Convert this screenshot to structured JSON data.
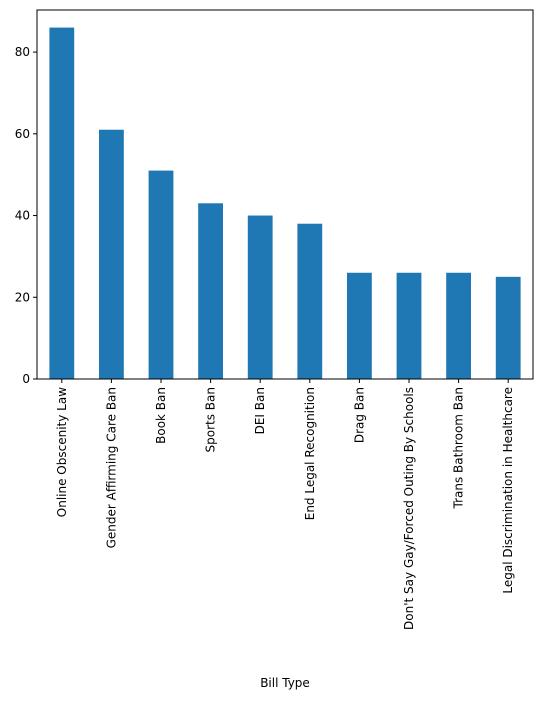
{
  "chart_data": {
    "type": "bar",
    "title": "",
    "xlabel": "Bill Type",
    "ylabel": "",
    "categories": [
      "Online Obscenity Law",
      "Gender Affirming Care Ban",
      "Book Ban",
      "Sports Ban",
      "DEI Ban",
      "End Legal Recognition",
      "Drag Ban",
      "Don't Say Gay/Forced Outing By Schools",
      "Trans Bathroom Ban",
      "Legal Discrimination in Healthcare"
    ],
    "values": [
      86,
      61,
      51,
      43,
      40,
      38,
      26,
      26,
      26,
      25
    ],
    "ylim": [
      0,
      90.3
    ],
    "yticks": [
      0,
      20,
      40,
      60,
      80
    ],
    "grid": false,
    "legend": "none",
    "bar_color": "#1f77b4"
  }
}
